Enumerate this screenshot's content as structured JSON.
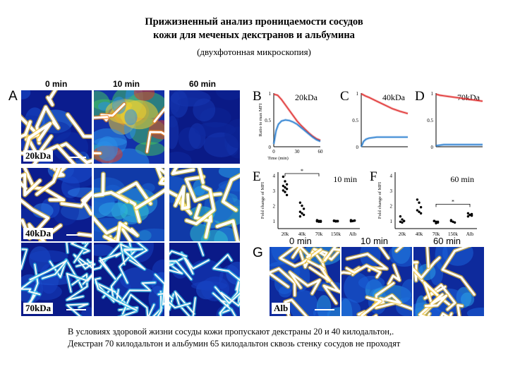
{
  "slide": {
    "title_line1": "Прижизненный анализ проницаемости сосудов",
    "title_line2": "кожи для меченых декстранов и альбумина",
    "subtitle": "(двухфотонная микроскопия)",
    "caption_line1": "В условиях здоровой жизни сосуды кожи пропускают декстраны 20 и 40 килодальтон,.",
    "caption_line2": "Декстран 70 килодальтон и альбумин  65 килодальтон сквозь стенку сосудов не проходят"
  },
  "panel_a": {
    "label": "A",
    "columns": [
      "0 min",
      "10 min",
      "60 min"
    ],
    "rows": [
      "20kDa",
      "40kDa",
      "70kDa"
    ]
  },
  "panel_g": {
    "label": "G",
    "columns": [
      "0 min",
      "10 min",
      "60 min"
    ],
    "row_label": "Alb"
  },
  "colors": {
    "vessel_bg": "#0a1a8c",
    "vessel_hot": "#ffffff",
    "red_curve": "#e03030",
    "blue_curve": "#2a7fd0"
  },
  "chart_data": [
    {
      "panel": "B",
      "type": "line",
      "title": "20kDa",
      "ylabel": "Ratio to max MFI",
      "xlabel": "Time (min)",
      "xlim": [
        0,
        60
      ],
      "ylim": [
        0,
        1
      ],
      "yticks": [
        "0",
        "0.5",
        "1"
      ],
      "xticks": [
        "0",
        "30",
        "60"
      ],
      "series": [
        {
          "color": "red",
          "x": [
            0,
            5,
            10,
            15,
            20,
            25,
            30,
            35,
            40,
            45,
            50,
            55,
            60
          ],
          "y": [
            0.98,
            0.96,
            0.88,
            0.78,
            0.68,
            0.58,
            0.48,
            0.4,
            0.33,
            0.26,
            0.2,
            0.15,
            0.12
          ]
        },
        {
          "color": "blue",
          "x": [
            0,
            3,
            6,
            10,
            15,
            20,
            25,
            30,
            35,
            40,
            45,
            50,
            55,
            60
          ],
          "y": [
            0.05,
            0.3,
            0.42,
            0.48,
            0.5,
            0.49,
            0.46,
            0.42,
            0.36,
            0.3,
            0.24,
            0.18,
            0.13,
            0.1
          ]
        }
      ]
    },
    {
      "panel": "C",
      "type": "line",
      "title": "40kDa",
      "xlim": [
        0,
        60
      ],
      "ylim": [
        0,
        1
      ],
      "yticks": [
        "0",
        "0.5",
        "1"
      ],
      "series": [
        {
          "color": "red",
          "x": [
            0,
            5,
            10,
            20,
            30,
            40,
            50,
            60
          ],
          "y": [
            0.99,
            0.95,
            0.92,
            0.85,
            0.78,
            0.71,
            0.66,
            0.62
          ]
        },
        {
          "color": "blue",
          "x": [
            0,
            3,
            6,
            10,
            20,
            30,
            40,
            50,
            60
          ],
          "y": [
            0.0,
            0.1,
            0.14,
            0.16,
            0.18,
            0.18,
            0.18,
            0.18,
            0.18
          ]
        }
      ]
    },
    {
      "panel": "D",
      "type": "line",
      "title": "70kDa",
      "xlim": [
        0,
        60
      ],
      "ylim": [
        0,
        1
      ],
      "yticks": [
        "0",
        "0.5",
        "1"
      ],
      "series": [
        {
          "color": "red",
          "x": [
            0,
            5,
            10,
            20,
            30,
            40,
            50,
            60
          ],
          "y": [
            0.98,
            0.96,
            0.95,
            0.93,
            0.91,
            0.89,
            0.87,
            0.85
          ]
        },
        {
          "color": "blue",
          "x": [
            0,
            5,
            10,
            20,
            30,
            40,
            50,
            60
          ],
          "y": [
            0.02,
            0.03,
            0.04,
            0.04,
            0.04,
            0.04,
            0.04,
            0.04
          ]
        }
      ]
    },
    {
      "panel": "E",
      "type": "scatter",
      "title": "10 min",
      "ylabel": "Fold change of MFI",
      "categories": [
        "20k",
        "40k",
        "70k",
        "150k",
        "Alb"
      ],
      "yticks": [
        "1",
        "2",
        "3",
        "4"
      ],
      "ylim": [
        0.5,
        4.2
      ],
      "sig": "*",
      "points": [
        [
          3.9,
          3.6,
          3.4,
          3.3,
          3.2,
          3.1,
          3.0,
          2.9,
          2.7
        ],
        [
          2.2,
          2.0,
          1.8,
          1.6,
          1.5,
          1.4,
          1.3
        ],
        [
          1.05,
          1.0,
          1.0,
          0.98,
          0.95,
          0.95,
          1.0
        ],
        [
          1.0,
          1.0,
          0.98,
          1.02,
          0.97,
          1.0
        ],
        [
          1.05,
          1.0,
          1.02,
          0.98,
          1.0,
          1.03
        ]
      ]
    },
    {
      "panel": "F",
      "type": "scatter",
      "title": "60 min",
      "ylabel": "Fold change of MFI",
      "categories": [
        "20k",
        "40k",
        "70k",
        "150k",
        "Alb"
      ],
      "yticks": [
        "1",
        "2",
        "3",
        "4"
      ],
      "ylim": [
        0.5,
        4.2
      ],
      "sig": "*",
      "points": [
        [
          1.3,
          1.1,
          1.0,
          0.95,
          0.9,
          1.0
        ],
        [
          2.4,
          2.2,
          1.9,
          1.7,
          1.6,
          1.5
        ],
        [
          1.0,
          0.95,
          0.9,
          1.0,
          0.85,
          0.95,
          1.0
        ],
        [
          1.0,
          0.95,
          0.9,
          1.05
        ],
        [
          1.5,
          1.4,
          1.35,
          1.3,
          1.4,
          1.45
        ]
      ]
    }
  ]
}
